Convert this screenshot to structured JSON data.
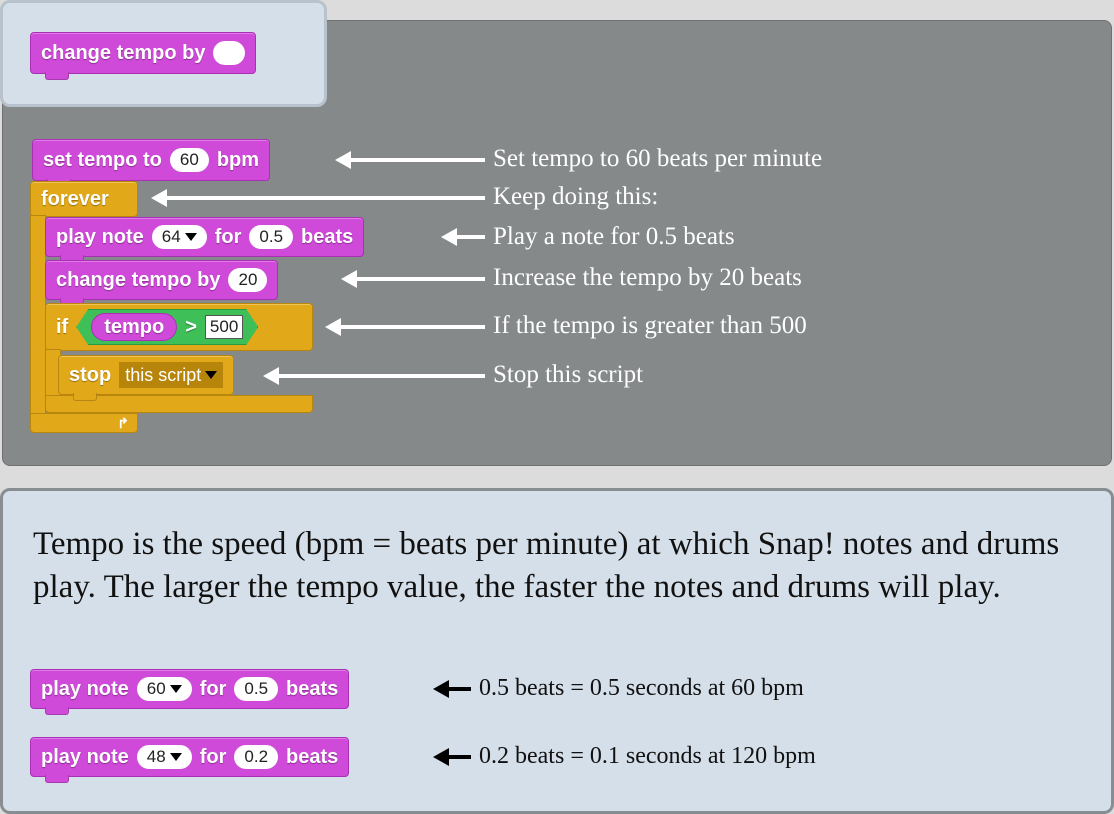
{
  "palette_block": {
    "text": "change tempo by"
  },
  "script": {
    "set_tempo": {
      "prefix": "set tempo to",
      "value": "60",
      "suffix": "bpm"
    },
    "forever": {
      "label": "forever"
    },
    "play_note": {
      "prefix": "play note",
      "note": "64",
      "middle": "for",
      "beats": "0.5",
      "suffix": "beats"
    },
    "change_tempo": {
      "prefix": "change tempo by",
      "value": "20"
    },
    "if_block": {
      "label": "if",
      "variable": "tempo",
      "operator": ">",
      "value": "500"
    },
    "stop": {
      "label": "stop",
      "option": "this script"
    }
  },
  "annotations": [
    "Set tempo to 60 beats per minute",
    "Keep doing this:",
    "Play a note for 0.5 beats",
    "Increase the tempo by 20 beats",
    "If the tempo is greater than 500",
    "Stop this script"
  ],
  "description": "Tempo is the speed (bpm = beats per minute) at which Snap! notes and drums play. The larger the tempo value, the faster the notes and drums will play.",
  "examples": [
    {
      "prefix": "play note",
      "note": "60",
      "middle": "for",
      "beats": "0.5",
      "suffix": "beats",
      "caption": "0.5 beats = 0.5 seconds at 60 bpm"
    },
    {
      "prefix": "play note",
      "note": "48",
      "middle": "for",
      "beats": "0.2",
      "suffix": "beats",
      "caption": "0.2 beats = 0.1 seconds at 120 bpm"
    }
  ],
  "colors": {
    "looks_purple": "#cf4ad9",
    "control_orange": "#e1a91a",
    "operator_green": "#3fbf58",
    "stage_gray": "#86898a",
    "panel_blue": "#d5dfe9"
  }
}
